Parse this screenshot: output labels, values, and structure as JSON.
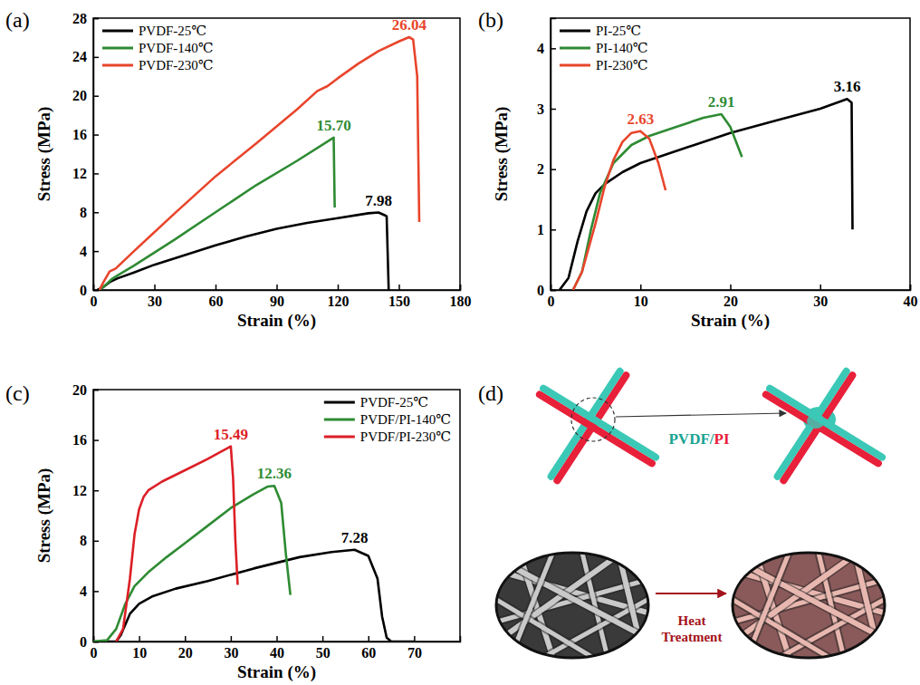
{
  "chart_data": [
    {
      "type": "line",
      "title": "(a)",
      "xlabel": "Strain (%)",
      "ylabel": "Stress (MPa)",
      "xlim": [
        0,
        180
      ],
      "xticks": [
        0,
        30,
        60,
        90,
        120,
        150,
        180
      ],
      "ylim": [
        0,
        28
      ],
      "yticks": [
        0,
        4,
        8,
        12,
        16,
        20,
        24,
        28
      ],
      "legend": "upper left",
      "series": [
        {
          "name": "PVDF-25℃",
          "color": "#000000",
          "x": [
            2,
            5,
            8,
            12,
            20,
            30,
            45,
            60,
            75,
            90,
            105,
            120,
            135,
            140,
            143,
            144,
            145
          ],
          "values": [
            0,
            0.3,
            0.8,
            1.2,
            1.8,
            2.6,
            3.6,
            4.6,
            5.5,
            6.3,
            6.9,
            7.4,
            7.9,
            7.98,
            7.7,
            7.6,
            0
          ]
        },
        {
          "name": "PVDF-140℃",
          "color": "#2e8b33",
          "x": [
            3,
            6,
            9,
            12,
            20,
            40,
            60,
            80,
            100,
            118,
            118.5
          ],
          "values": [
            0,
            0.5,
            1.1,
            1.5,
            2.5,
            5.2,
            8.0,
            10.8,
            13.3,
            15.7,
            8.5
          ]
        },
        {
          "name": "PVDF-230℃",
          "color": "#e8452c",
          "x": [
            3,
            5,
            8,
            11,
            20,
            40,
            60,
            80,
            100,
            110,
            115,
            120,
            130,
            140,
            150,
            155,
            157,
            159,
            160
          ],
          "values": [
            0,
            0.8,
            1.9,
            2.2,
            4.0,
            7.9,
            11.7,
            15.1,
            18.6,
            20.5,
            21.0,
            21.8,
            23.3,
            24.6,
            25.6,
            26.04,
            25.8,
            22,
            7
          ]
        }
      ],
      "annotations": [
        {
          "text": "7.98",
          "x": 140,
          "y": 7.98,
          "color": "#000000"
        },
        {
          "text": "15.70",
          "x": 118,
          "y": 15.7,
          "color": "#2e8b33"
        },
        {
          "text": "26.04",
          "x": 155,
          "y": 26.04,
          "color": "#e8452c"
        }
      ]
    },
    {
      "type": "line",
      "title": "(b)",
      "xlabel": "Strain (%)",
      "ylabel": "Stress (MPa)",
      "xlim": [
        0,
        40
      ],
      "xticks": [
        0,
        10,
        20,
        30,
        40
      ],
      "ylim": [
        0,
        4.5
      ],
      "yticks": [
        0,
        1,
        2,
        3,
        4
      ],
      "legend": "upper left",
      "series": [
        {
          "name": "PI-25℃",
          "color": "#000000",
          "x": [
            1,
            2,
            3,
            4,
            5,
            6,
            8,
            10,
            15,
            20,
            25,
            30,
            33,
            33.5,
            33.6
          ],
          "values": [
            0,
            0.2,
            0.8,
            1.3,
            1.6,
            1.75,
            1.95,
            2.1,
            2.35,
            2.6,
            2.8,
            3.0,
            3.16,
            3.1,
            1.0
          ]
        },
        {
          "name": "PI-140℃",
          "color": "#2e8b33",
          "x": [
            2.5,
            3.5,
            4.5,
            5.5,
            7,
            9,
            11,
            14,
            17,
            19,
            20,
            21.3
          ],
          "values": [
            0,
            0.3,
            1.0,
            1.6,
            2.1,
            2.4,
            2.55,
            2.7,
            2.85,
            2.91,
            2.7,
            2.2
          ]
        },
        {
          "name": "PI-230℃",
          "color": "#e8452c",
          "x": [
            2.5,
            3.5,
            5,
            6,
            7,
            8,
            9,
            10,
            11,
            12,
            12.8
          ],
          "values": [
            0,
            0.3,
            1.1,
            1.7,
            2.15,
            2.45,
            2.6,
            2.63,
            2.5,
            2.1,
            1.65
          ]
        }
      ],
      "annotations": [
        {
          "text": "3.16",
          "x": 33,
          "y": 3.16,
          "color": "#000000"
        },
        {
          "text": "2.91",
          "x": 19,
          "y": 2.91,
          "color": "#2e8b33"
        },
        {
          "text": "2.63",
          "x": 10,
          "y": 2.63,
          "color": "#e8452c"
        }
      ]
    },
    {
      "type": "line",
      "title": "(c)",
      "xlabel": "Strain (%)",
      "ylabel": "Stress (MPa)",
      "xlim": [
        0,
        80
      ],
      "xticks": [
        0,
        10,
        20,
        30,
        40,
        50,
        60,
        70
      ],
      "ylim": [
        0,
        20
      ],
      "yticks": [
        0,
        4,
        8,
        12,
        16,
        20
      ],
      "legend": "upper right",
      "series": [
        {
          "name": "PVDF-25℃",
          "color": "#000000",
          "x": [
            0,
            5,
            6,
            8,
            10,
            13,
            18,
            25,
            35,
            45,
            52,
            57,
            60,
            62,
            63,
            64,
            65,
            70
          ],
          "values": [
            0,
            0,
            0.5,
            2.2,
            3.0,
            3.6,
            4.2,
            4.8,
            5.8,
            6.7,
            7.1,
            7.28,
            6.8,
            5.0,
            2,
            0.3,
            0,
            0
          ]
        },
        {
          "name": "PVDF/PI-140℃",
          "color": "#2e8b33",
          "x": [
            0,
            3,
            5,
            7,
            9,
            12,
            16,
            20,
            25,
            30,
            35,
            38,
            39.5,
            41,
            42,
            43
          ],
          "values": [
            0,
            0.1,
            1.0,
            3.0,
            4.4,
            5.5,
            6.7,
            7.8,
            9.2,
            10.6,
            11.7,
            12.3,
            12.36,
            11,
            7,
            3.7
          ]
        },
        {
          "name": "PVDF/PI-230℃",
          "color": "#dc1f26",
          "x": [
            5,
            6.5,
            8,
            9,
            10,
            11,
            12,
            15,
            20,
            25,
            29,
            30,
            30.5,
            31,
            31.5
          ],
          "values": [
            0,
            1,
            5,
            8.5,
            10.5,
            11.5,
            12,
            12.7,
            13.6,
            14.5,
            15.3,
            15.49,
            13,
            8,
            4.5
          ]
        }
      ],
      "annotations": [
        {
          "text": "7.28",
          "x": 57,
          "y": 7.28,
          "color": "#000000"
        },
        {
          "text": "12.36",
          "x": 39.5,
          "y": 12.36,
          "color": "#2e8b33"
        },
        {
          "text": "15.49",
          "x": 30,
          "y": 15.49,
          "color": "#dc1f26"
        }
      ]
    }
  ],
  "diagram": {
    "label": "(d)",
    "fiber_label": [
      "PVDF",
      "/",
      "PI"
    ],
    "treatment_label": "Heat Treatment"
  }
}
